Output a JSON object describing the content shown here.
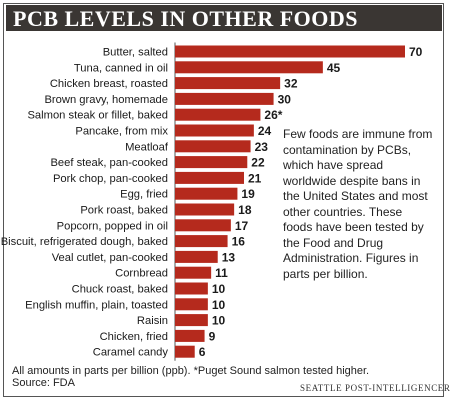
{
  "title": "PCB LEVELS IN OTHER FOODS",
  "note": "Few foods are immune from contamination by PCBs, which have spread worldwide despite bans in the United States and most other countries. These foods have been tested by the Food and Drug Administration. Figures in parts per billion.",
  "footnote_line1": "All amounts in parts per billion (ppb). *Puget Sound salmon tested higher.",
  "footnote_line2": "Source: FDA",
  "credit": "SEATTLE POST-INTELLIGENCER",
  "colors": {
    "bar": "#b52a1d",
    "title_bg": "#3a3633",
    "title_text": "#ffffff"
  },
  "chart_data": {
    "type": "bar",
    "orientation": "horizontal",
    "categories": [
      "Butter, salted",
      "Tuna, canned in oil",
      "Chicken breast, roasted",
      "Brown gravy, homemade",
      "Salmon steak or fillet, baked",
      "Pancake, from mix",
      "Meatloaf",
      "Beef steak, pan-cooked",
      "Pork chop, pan-cooked",
      "Egg, fried",
      "Pork roast, baked",
      "Popcorn, popped in oil",
      "Biscuit, refrigerated dough, baked",
      "Veal cutlet, pan-cooked",
      "Cornbread",
      "Chuck roast, baked",
      "English muffin, plain, toasted",
      "Raisin",
      "Chicken, fried",
      "Caramel candy"
    ],
    "values": [
      70,
      45,
      32,
      30,
      26,
      24,
      23,
      22,
      21,
      19,
      18,
      17,
      16,
      13,
      11,
      10,
      10,
      10,
      9,
      6
    ],
    "value_labels": [
      "70",
      "45",
      "32",
      "30",
      "26*",
      "24",
      "23",
      "22",
      "21",
      "19",
      "18",
      "17",
      "16",
      "13",
      "11",
      "10",
      "10",
      "10",
      "9",
      "6"
    ],
    "unit": "ppb",
    "xlim": [
      0,
      70
    ],
    "grid": false,
    "legend": "none"
  }
}
